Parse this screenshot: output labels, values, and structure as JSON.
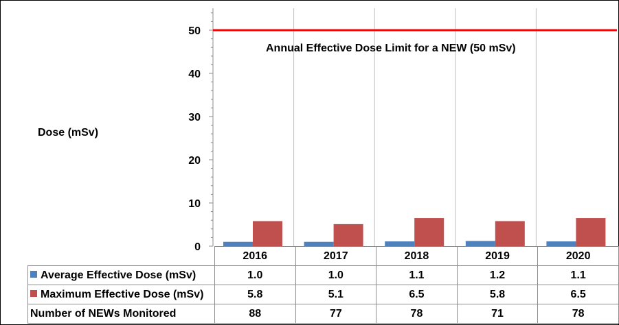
{
  "chart_data": {
    "type": "bar",
    "categories": [
      "2016",
      "2017",
      "2018",
      "2019",
      "2020"
    ],
    "series": [
      {
        "name": "Average Effective Dose (mSv)",
        "values": [
          1.0,
          1.0,
          1.1,
          1.2,
          1.1
        ],
        "color": "#4f81bd"
      },
      {
        "name": "Maximum Effective Dose (mSv)",
        "values": [
          5.8,
          5.1,
          6.5,
          5.8,
          6.5
        ],
        "color": "#c0504d"
      }
    ],
    "extra_rows": [
      {
        "name": "Number of NEWs Monitored",
        "values": [
          88,
          77,
          78,
          71,
          78
        ]
      }
    ],
    "ylabel": "Dose (mSv)",
    "ylim": [
      0,
      55
    ],
    "yticks": [
      0,
      10,
      20,
      30,
      40,
      50
    ],
    "reference_line": {
      "value": 50,
      "label": "Annual Effective Dose Limit for a NEW (50 mSv)",
      "color": "#ff0000"
    },
    "grid": "vertical-category-separators",
    "legend": "data-table"
  }
}
